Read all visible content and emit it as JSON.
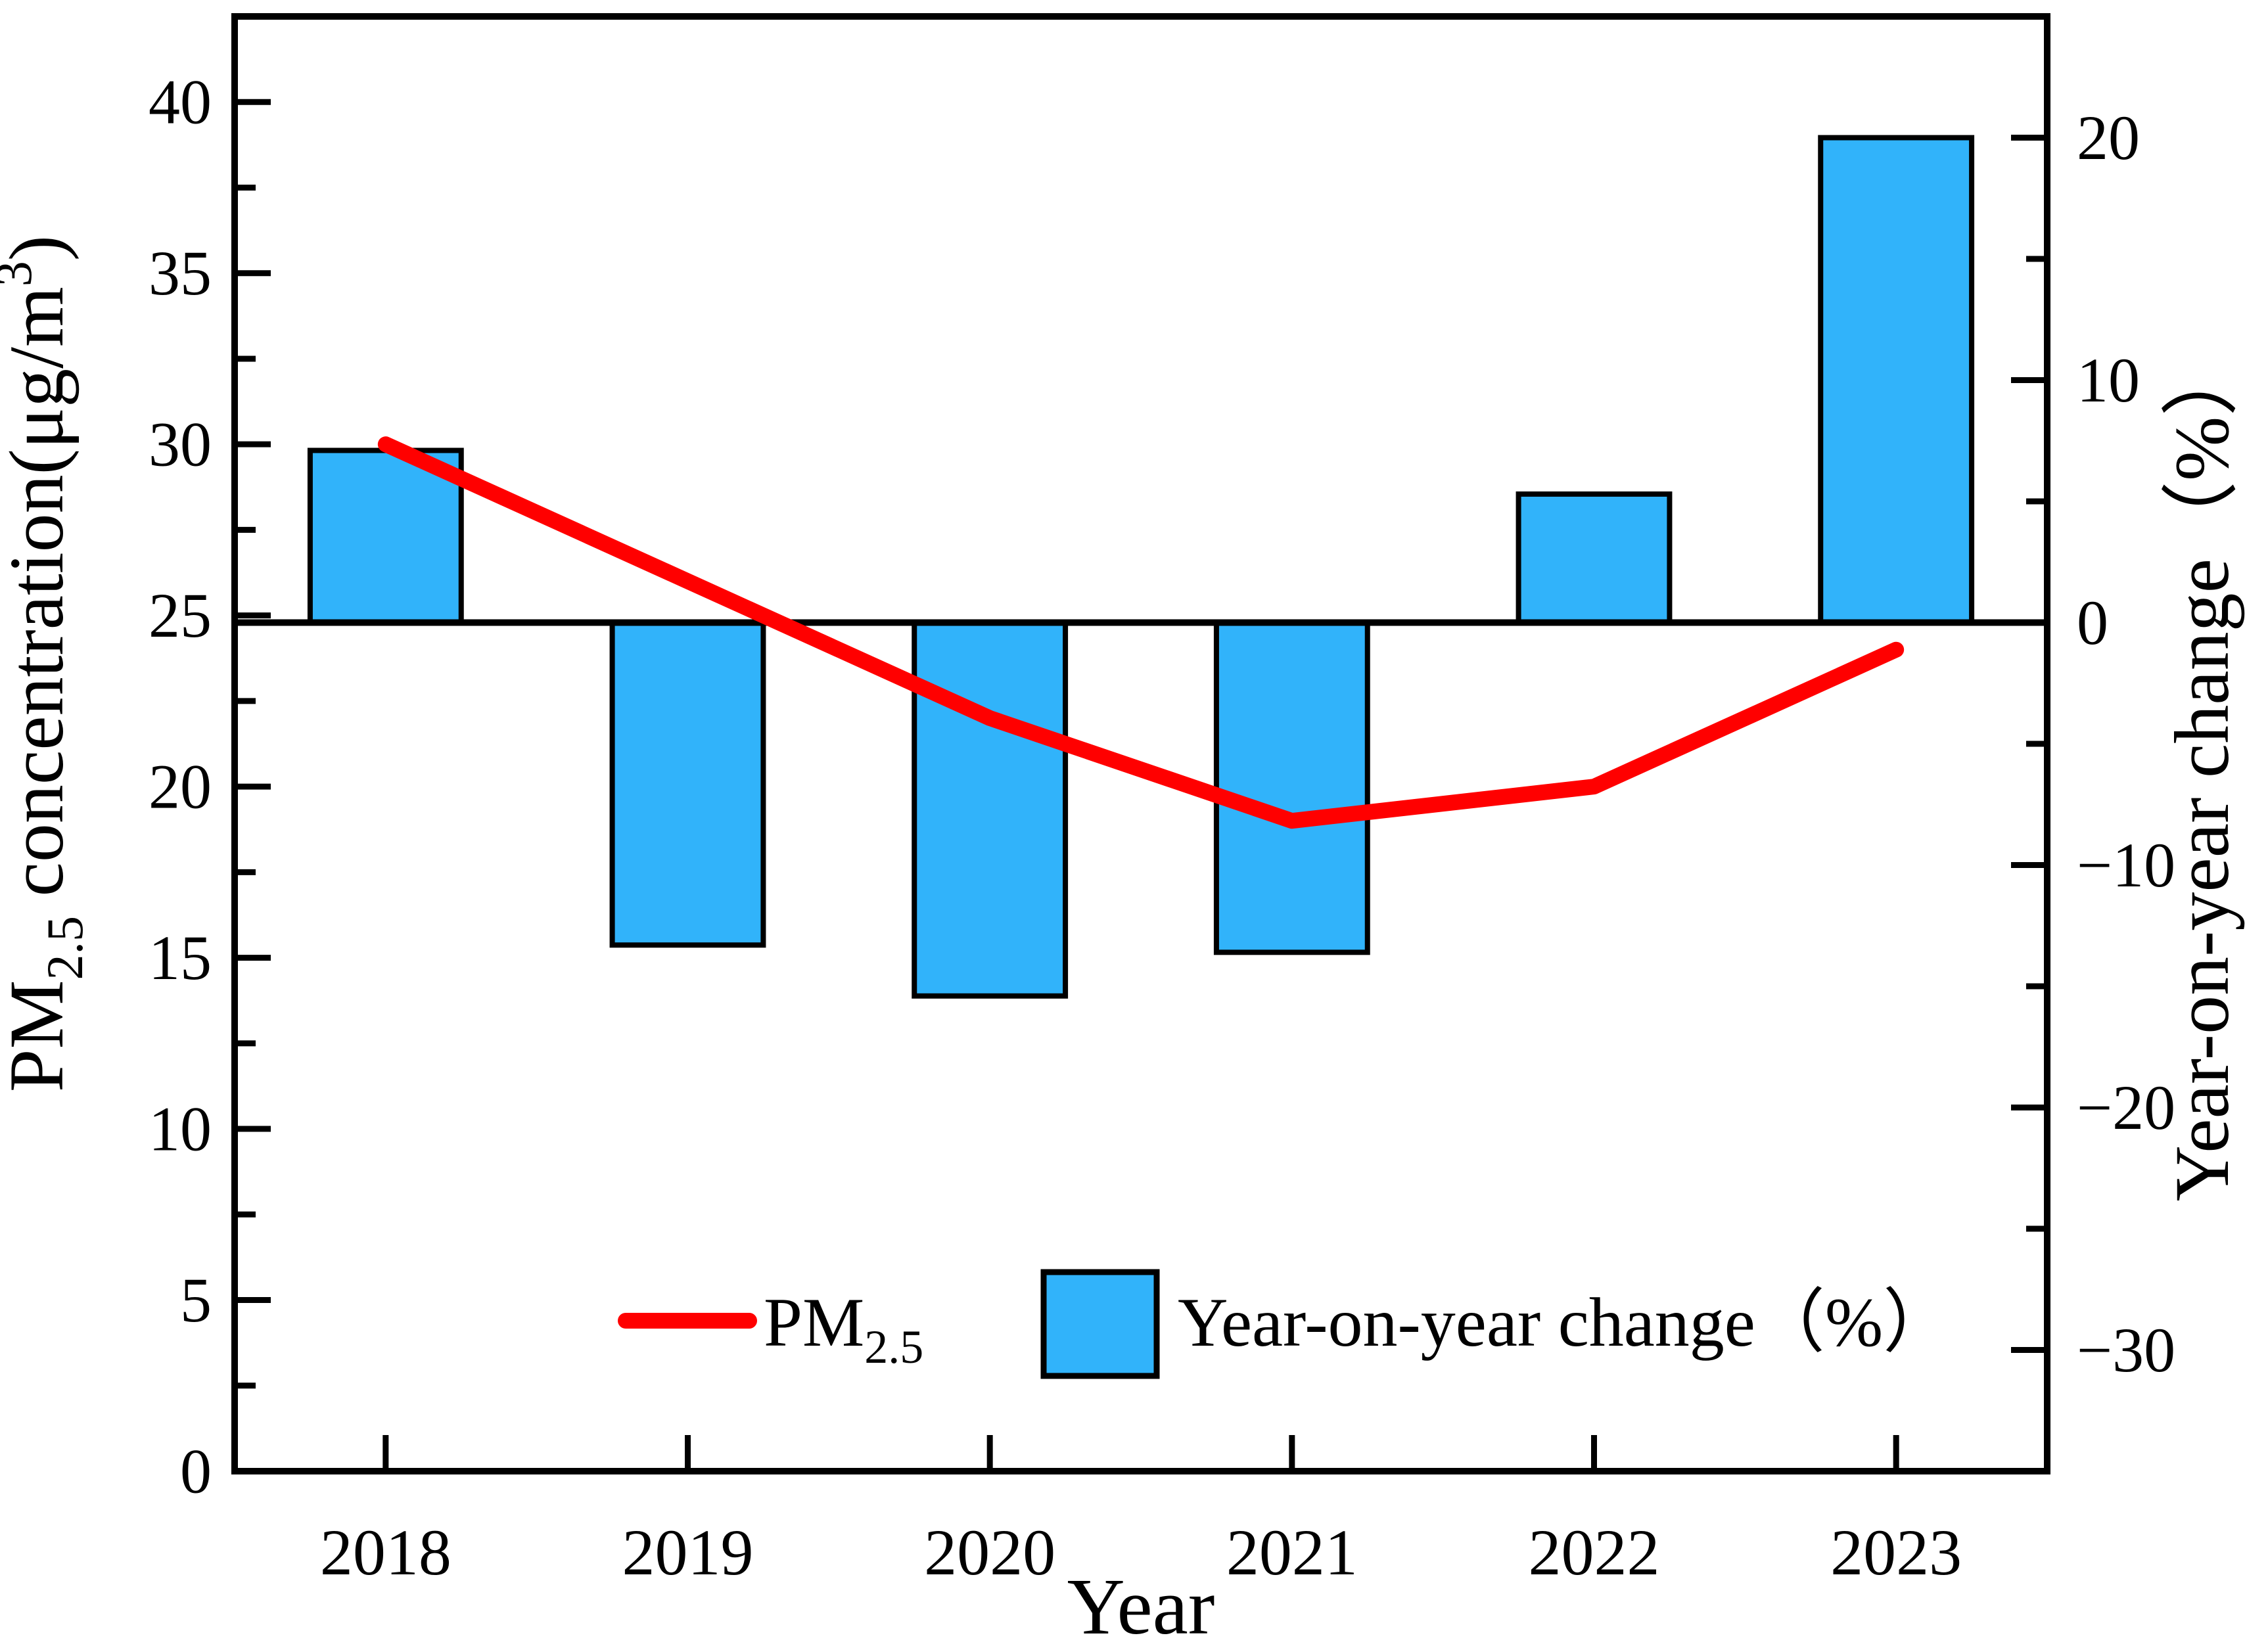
{
  "chart_data": {
    "type": "bar+line",
    "title": "",
    "categories": [
      "2018",
      "2019",
      "2020",
      "2021",
      "2022",
      "2023"
    ],
    "series": [
      {
        "name": "PM2.5",
        "type": "line",
        "axis": "left",
        "color": "#ff0000",
        "values": [
          30,
          26,
          22,
          19,
          20,
          24
        ]
      },
      {
        "name": "Year-on-year change（%）",
        "type": "bar",
        "axis": "right",
        "color": "#31b3fa",
        "values": [
          7.1,
          -13.3,
          -15.4,
          -13.6,
          5.3,
          20.0
        ]
      }
    ],
    "x_axis": {
      "label": "Year",
      "ticks": [
        "2018",
        "2019",
        "2020",
        "2021",
        "2022",
        "2023"
      ]
    },
    "left_axis": {
      "label": "PM2.5 concentration(μg/m³)",
      "label_parts": {
        "main": "PM",
        "sub": "2.5",
        "mid": " concentration(μg/m",
        "sup": "3",
        "end": ")"
      },
      "range": [
        0,
        42.5
      ],
      "major_ticks": [
        0,
        5,
        10,
        15,
        20,
        25,
        30,
        35,
        40
      ],
      "minor_step": 2.5
    },
    "right_axis": {
      "label": "Year-on-year change（%）",
      "range": [
        -35,
        25
      ],
      "major_ticks": [
        -30,
        -20,
        -10,
        0,
        10,
        20
      ],
      "minor_step": 5
    },
    "baseline_right_value": 0,
    "grid": false,
    "legend_position": "inside-bottom-center",
    "legend": [
      {
        "swatch": "line",
        "color": "#ff0000",
        "label_main": "PM",
        "label_sub": "2.5"
      },
      {
        "swatch": "bar",
        "color": "#31b3fa",
        "label": "Year-on-year change（%）"
      }
    ]
  },
  "colors": {
    "bar_fill": "#31b3fa",
    "line": "#ff0000",
    "axis": "#000000",
    "background": "#ffffff"
  }
}
